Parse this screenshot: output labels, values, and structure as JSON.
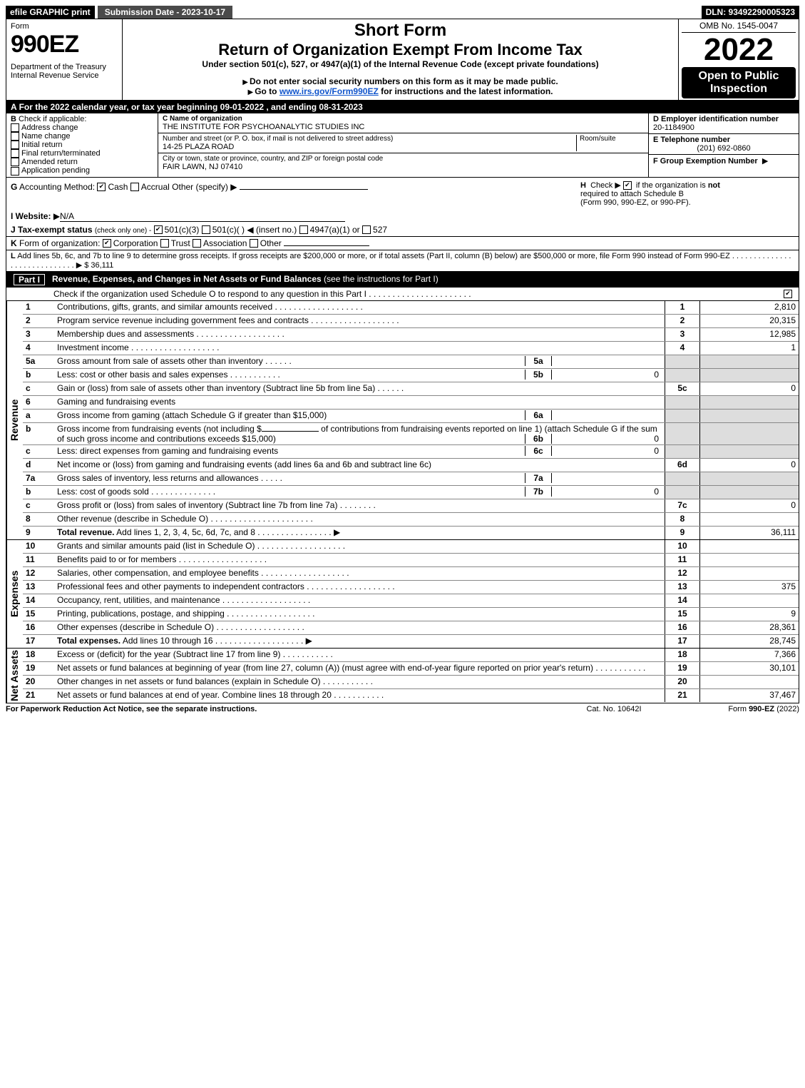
{
  "topbar": {
    "efile": "efile GRAPHIC print",
    "subdate": "Submission Date - 2023-10-17",
    "dln": "DLN: 93492290005323"
  },
  "header": {
    "form_word": "Form",
    "form_num": "990EZ",
    "dept": "Department of the Treasury",
    "irs": "Internal Revenue Service",
    "short_title": "Short Form",
    "long_title": "Return of Organization Exempt From Income Tax",
    "under": "Under section 501(c), 527, or 4947(a)(1) of the Internal Revenue Code (except private foundations)",
    "warn1": "Do not enter social security numbers on this form as it may be made public.",
    "warn2": "Go to",
    "warn2_link": "www.irs.gov/Form990EZ",
    "warn2_tail": "for instructions and the latest information.",
    "omb": "OMB No. 1545-0047",
    "year": "2022",
    "open": "Open to Public Inspection"
  },
  "A": {
    "text": "For the 2022 calendar year, or tax year beginning 09-01-2022 , and ending 08-31-2023"
  },
  "B": {
    "label": "Check if applicable:",
    "opts": [
      "Address change",
      "Name change",
      "Initial return",
      "Final return/terminated",
      "Amended return",
      "Application pending"
    ]
  },
  "C": {
    "c_lbl": "C Name of organization",
    "c_val": "THE INSTITUTE FOR PSYCHOANALYTIC STUDIES INC",
    "addr_lbl": "Number and street (or P. O. box, if mail is not delivered to street address)",
    "room_lbl": "Room/suite",
    "addr_val": "14-25 PLAZA ROAD",
    "city_lbl": "City or town, state or province, country, and ZIP or foreign postal code",
    "city_val": "FAIR LAWN, NJ  07410"
  },
  "D": {
    "d_lbl": "D Employer identification number",
    "d_val": "20-1184900",
    "e_lbl": "E Telephone number",
    "e_val": "(201) 692-0860",
    "f_lbl": "F Group Exemption Number",
    "f_arrow": "▶"
  },
  "G": {
    "label": "Accounting Method:",
    "opts": [
      "Cash",
      "Accrual",
      "Other (specify)"
    ],
    "arrow": "▶"
  },
  "H": {
    "text1": "Check ▶",
    "text2": "if the organization is",
    "not": "not",
    "text3": "required to attach Schedule B",
    "text4": "(Form 990, 990-EZ, or 990-PF)."
  },
  "I": {
    "label": "Website:",
    "arrow": "▶",
    "val": "N/A"
  },
  "J": {
    "label": "Tax-exempt status",
    "sub": "(check only one) -",
    "opts": [
      "501(c)(3)",
      "501(c)(   ) ◀ (insert no.)",
      "4947(a)(1) or",
      "527"
    ]
  },
  "K": {
    "label": "Form of organization:",
    "opts": [
      "Corporation",
      "Trust",
      "Association",
      "Other"
    ]
  },
  "L": {
    "text": "Add lines 5b, 6c, and 7b to line 9 to determine gross receipts. If gross receipts are $200,000 or more, or if total assets (Part II, column (B) below) are $500,000 or more, file Form 990 instead of Form 990-EZ",
    "arrow": "▶ $",
    "val": "36,111"
  },
  "PartI": {
    "title": "Revenue, Expenses, and Changes in Net Assets or Fund Balances",
    "note": "(see the instructions for Part I)",
    "check_line": "Check if the organization used Schedule O to respond to any question in this Part I"
  },
  "revenue": [
    {
      "n": "1",
      "d": "Contributions, gifts, grants, and similar amounts received",
      "rn": "1",
      "v": "2,810"
    },
    {
      "n": "2",
      "d": "Program service revenue including government fees and contracts",
      "rn": "2",
      "v": "20,315"
    },
    {
      "n": "3",
      "d": "Membership dues and assessments",
      "rn": "3",
      "v": "12,985"
    },
    {
      "n": "4",
      "d": "Investment income",
      "rn": "4",
      "v": "1"
    }
  ],
  "r5": {
    "a": {
      "n": "5a",
      "d": "Gross amount from sale of assets other than inventory",
      "box": "5a",
      "bv": ""
    },
    "b": {
      "n": "b",
      "d": "Less: cost or other basis and sales expenses",
      "box": "5b",
      "bv": "0"
    },
    "c": {
      "n": "c",
      "d": "Gain or (loss) from sale of assets other than inventory (Subtract line 5b from line 5a)",
      "rn": "5c",
      "v": "0"
    }
  },
  "r6": {
    "head": {
      "n": "6",
      "d": "Gaming and fundraising events"
    },
    "a": {
      "n": "a",
      "d": "Gross income from gaming (attach Schedule G if greater than $15,000)",
      "box": "6a",
      "bv": ""
    },
    "b": {
      "n": "b",
      "d1": "Gross income from fundraising events (not including $",
      "d2": "of contributions from fundraising events reported on line 1) (attach Schedule G if the sum of such gross income and contributions exceeds $15,000)",
      "box": "6b",
      "bv": "0"
    },
    "c": {
      "n": "c",
      "d": "Less: direct expenses from gaming and fundraising events",
      "box": "6c",
      "bv": "0"
    },
    "d": {
      "n": "d",
      "d": "Net income or (loss) from gaming and fundraising events (add lines 6a and 6b and subtract line 6c)",
      "rn": "6d",
      "v": "0"
    }
  },
  "r7": {
    "a": {
      "n": "7a",
      "d": "Gross sales of inventory, less returns and allowances",
      "box": "7a",
      "bv": ""
    },
    "b": {
      "n": "b",
      "d": "Less: cost of goods sold",
      "box": "7b",
      "bv": "0"
    },
    "c": {
      "n": "c",
      "d": "Gross profit or (loss) from sales of inventory (Subtract line 7b from line 7a)",
      "rn": "7c",
      "v": "0"
    }
  },
  "r8": {
    "n": "8",
    "d": "Other revenue (describe in Schedule O)",
    "rn": "8",
    "v": ""
  },
  "r9": {
    "n": "9",
    "d": "Total revenue.",
    "d2": "Add lines 1, 2, 3, 4, 5c, 6d, 7c, and 8",
    "rn": "9",
    "v": "36,111"
  },
  "expenses": [
    {
      "n": "10",
      "d": "Grants and similar amounts paid (list in Schedule O)",
      "rn": "10",
      "v": ""
    },
    {
      "n": "11",
      "d": "Benefits paid to or for members",
      "rn": "11",
      "v": ""
    },
    {
      "n": "12",
      "d": "Salaries, other compensation, and employee benefits",
      "rn": "12",
      "v": ""
    },
    {
      "n": "13",
      "d": "Professional fees and other payments to independent contractors",
      "rn": "13",
      "v": "375"
    },
    {
      "n": "14",
      "d": "Occupancy, rent, utilities, and maintenance",
      "rn": "14",
      "v": ""
    },
    {
      "n": "15",
      "d": "Printing, publications, postage, and shipping",
      "rn": "15",
      "v": "9"
    },
    {
      "n": "16",
      "d": "Other expenses (describe in Schedule O)",
      "rn": "16",
      "v": "28,361"
    },
    {
      "n": "17",
      "d": "Total expenses.",
      "d2": "Add lines 10 through 16",
      "rn": "17",
      "v": "28,745",
      "bold": true
    }
  ],
  "netassets": [
    {
      "n": "18",
      "d": "Excess or (deficit) for the year (Subtract line 17 from line 9)",
      "rn": "18",
      "v": "7,366"
    },
    {
      "n": "19",
      "d": "Net assets or fund balances at beginning of year (from line 27, column (A)) (must agree with end-of-year figure reported on prior year's return)",
      "rn": "19",
      "v": "30,101"
    },
    {
      "n": "20",
      "d": "Other changes in net assets or fund balances (explain in Schedule O)",
      "rn": "20",
      "v": ""
    },
    {
      "n": "21",
      "d": "Net assets or fund balances at end of year. Combine lines 18 through 20",
      "rn": "21",
      "v": "37,467"
    }
  ],
  "footer": {
    "left": "For Paperwork Reduction Act Notice, see the separate instructions.",
    "mid": "Cat. No. 10642I",
    "right_pre": "Form ",
    "right_bold": "990-EZ",
    "right_post": " (2022)"
  },
  "side_labels": {
    "rev": "Revenue",
    "exp": "Expenses",
    "na": "Net Assets"
  }
}
